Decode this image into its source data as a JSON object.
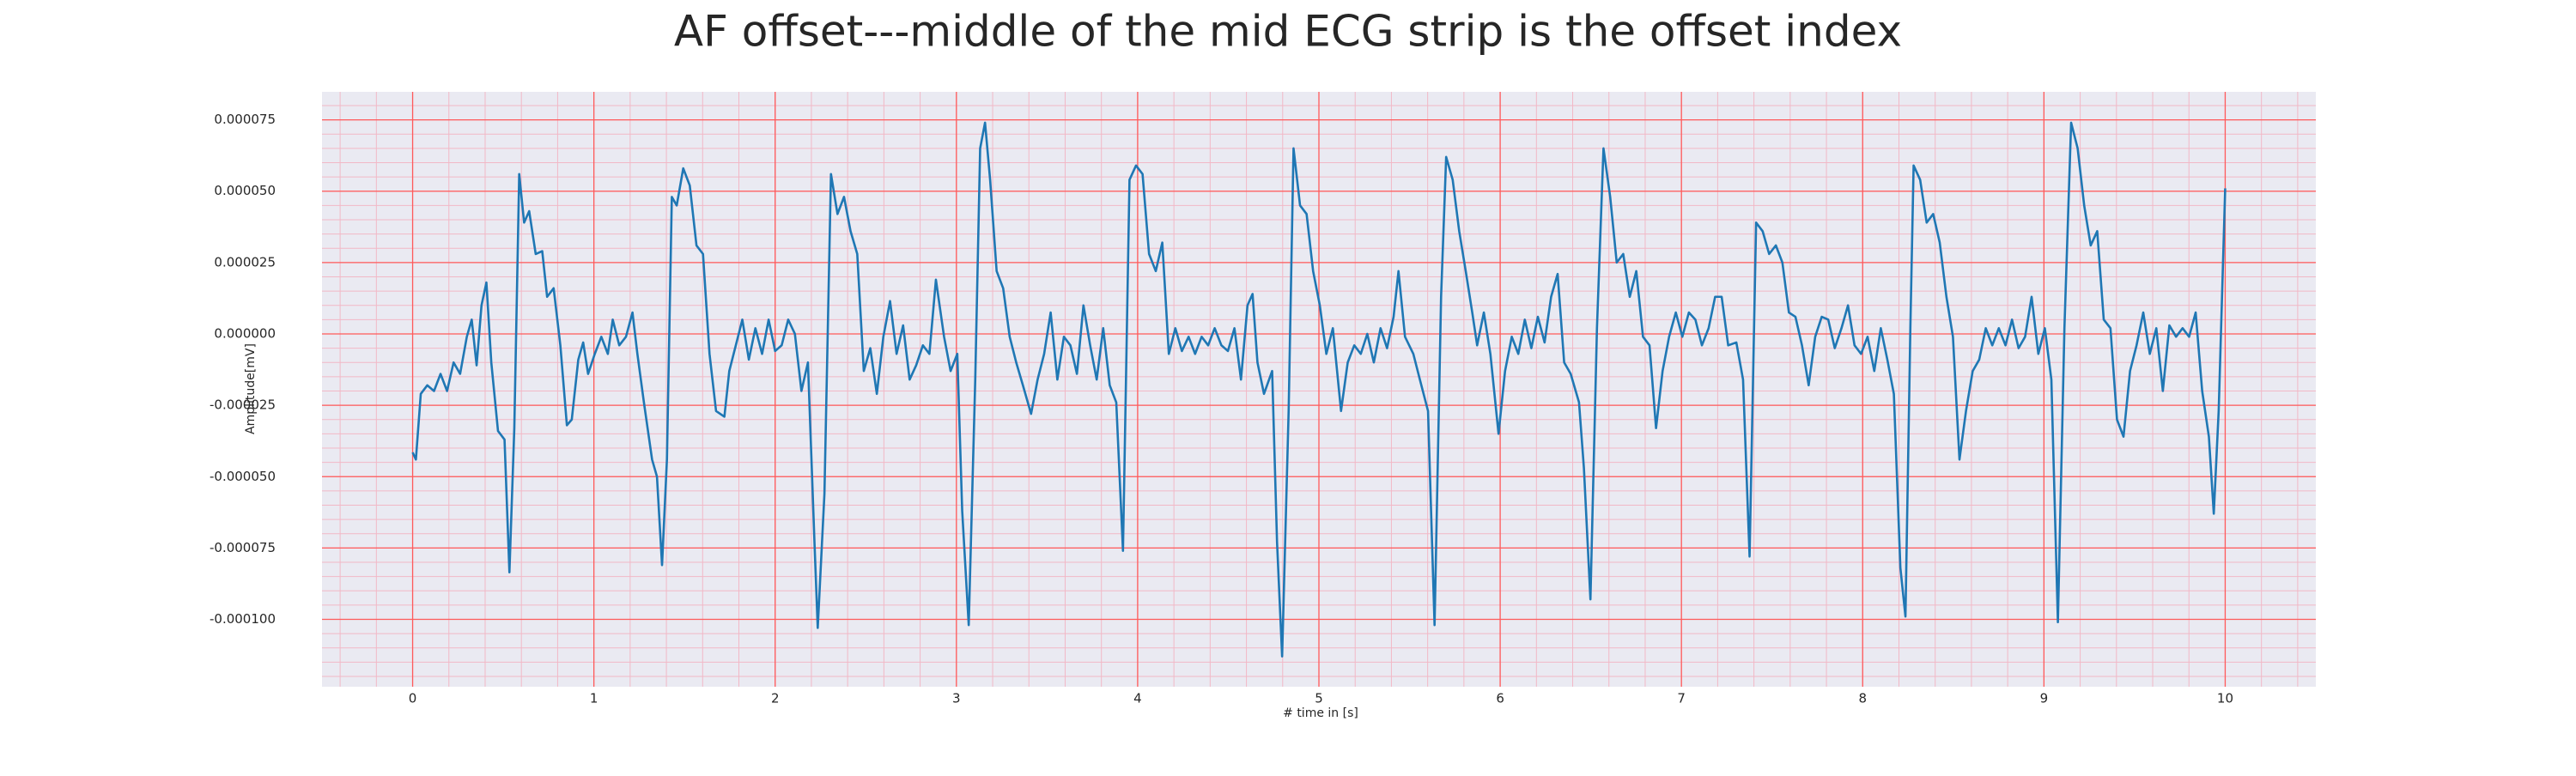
{
  "chart_data": {
    "type": "line",
    "title": "AF offset---middle of the mid ECG strip is the offset index",
    "xlabel": "# time in [s]",
    "ylabel": "Amplitude[mV]",
    "color": "#1f77b4",
    "grid": true,
    "minor_grid": true,
    "xlim": [
      -0.5,
      10.5
    ],
    "ylim": [
      -0.0001236,
      8.48e-05
    ],
    "xticks": [
      0,
      1,
      2,
      3,
      4,
      5,
      6,
      7,
      8,
      9,
      10
    ],
    "yticks": [
      {
        "value": -0.0001,
        "label": "-0.000100"
      },
      {
        "value": -7.5e-05,
        "label": "-0.000075"
      },
      {
        "value": -5e-05,
        "label": "-0.000050"
      },
      {
        "value": -2.5e-05,
        "label": "-0.000025"
      },
      {
        "value": 0,
        "label": "0.000000"
      },
      {
        "value": 2.5e-05,
        "label": "0.000025"
      },
      {
        "value": 5e-05,
        "label": "0.000050"
      },
      {
        "value": 7.5e-05,
        "label": "0.000075"
      }
    ],
    "x": [
      0,
      0.018,
      0.045,
      0.081,
      0.118,
      0.154,
      0.19,
      0.226,
      0.262,
      0.299,
      0.326,
      0.353,
      0.38,
      0.407,
      0.434,
      0.471,
      0.507,
      0.534,
      0.561,
      0.588,
      0.615,
      0.643,
      0.679,
      0.715,
      0.742,
      0.778,
      0.815,
      0.851,
      0.878,
      0.914,
      0.941,
      0.968,
      1.005,
      1.041,
      1.077,
      1.104,
      1.14,
      1.177,
      1.213,
      1.24,
      1.276,
      1.321,
      1.348,
      1.376,
      1.403,
      1.43,
      1.457,
      1.493,
      1.529,
      1.566,
      1.602,
      1.638,
      1.674,
      1.72,
      1.747,
      1.783,
      1.819,
      1.855,
      1.891,
      1.928,
      1.964,
      2.0,
      2.036,
      2.072,
      2.109,
      2.145,
      2.181,
      2.217,
      2.235,
      2.272,
      2.308,
      2.344,
      2.38,
      2.416,
      2.453,
      2.489,
      2.525,
      2.561,
      2.597,
      2.634,
      2.67,
      2.706,
      2.742,
      2.778,
      2.815,
      2.851,
      2.887,
      2.932,
      2.968,
      3.005,
      3.032,
      3.068,
      3.104,
      3.131,
      3.158,
      3.186,
      3.222,
      3.258,
      3.294,
      3.33,
      3.367,
      3.412,
      3.448,
      3.484,
      3.52,
      3.557,
      3.593,
      3.629,
      3.665,
      3.701,
      3.738,
      3.774,
      3.81,
      3.846,
      3.882,
      3.919,
      3.955,
      3.991,
      4.027,
      4.063,
      4.1,
      4.136,
      4.172,
      4.208,
      4.244,
      4.281,
      4.317,
      4.353,
      4.389,
      4.425,
      4.462,
      4.498,
      4.534,
      4.57,
      4.606,
      4.634,
      4.661,
      4.697,
      4.742,
      4.769,
      4.797,
      4.833,
      4.86,
      4.896,
      4.932,
      4.968,
      5.005,
      5.041,
      5.077,
      5.122,
      5.159,
      5.195,
      5.231,
      5.267,
      5.303,
      5.34,
      5.376,
      5.412,
      5.439,
      5.475,
      5.521,
      5.557,
      5.602,
      5.638,
      5.674,
      5.702,
      5.738,
      5.774,
      5.81,
      5.846,
      5.873,
      5.91,
      5.946,
      5.991,
      6.027,
      6.064,
      6.1,
      6.136,
      6.172,
      6.208,
      6.245,
      6.281,
      6.317,
      6.353,
      6.389,
      6.435,
      6.462,
      6.498,
      6.534,
      6.57,
      6.607,
      6.643,
      6.679,
      6.715,
      6.751,
      6.788,
      6.824,
      6.86,
      6.896,
      6.932,
      6.969,
      7.005,
      7.041,
      7.077,
      7.113,
      7.15,
      7.186,
      7.222,
      7.258,
      7.303,
      7.34,
      7.376,
      7.412,
      7.448,
      7.484,
      7.521,
      7.557,
      7.593,
      7.629,
      7.665,
      7.702,
      7.738,
      7.774,
      7.81,
      7.846,
      7.883,
      7.919,
      7.955,
      7.991,
      8.027,
      8.064,
      8.1,
      8.136,
      8.172,
      8.208,
      8.236,
      8.263,
      8.281,
      8.317,
      8.353,
      8.389,
      8.425,
      8.462,
      8.498,
      8.534,
      8.57,
      8.607,
      8.643,
      8.679,
      8.715,
      8.751,
      8.788,
      8.824,
      8.86,
      8.896,
      8.932,
      8.969,
      9.005,
      9.041,
      9.077,
      9.113,
      9.15,
      9.186,
      9.222,
      9.258,
      9.294,
      9.33,
      9.367,
      9.403,
      9.439,
      9.475,
      9.511,
      9.548,
      9.584,
      9.62,
      9.656,
      9.692,
      9.729,
      9.765,
      9.801,
      9.837,
      9.873,
      9.91,
      9.937,
      9.964,
      10.0
    ],
    "values": [
      -4.15e-05,
      -4.4e-05,
      -2.1e-05,
      -1.8e-05,
      -2e-05,
      -1.4e-05,
      -2e-05,
      -1e-05,
      -1.4e-05,
      -1e-06,
      5e-06,
      -1.1e-05,
      1e-05,
      1.8e-05,
      -1e-05,
      -3.4e-05,
      -3.7e-05,
      -8.35e-05,
      -3.3e-05,
      5.6e-05,
      3.9e-05,
      4.3e-05,
      2.8e-05,
      2.9e-05,
      1.3e-05,
      1.6e-05,
      -4e-06,
      -3.2e-05,
      -3e-05,
      -9e-06,
      -3e-06,
      -1.4e-05,
      -7e-06,
      -1e-06,
      -7e-06,
      5e-06,
      -4e-06,
      -1e-06,
      7.5e-06,
      -7e-06,
      -2.4e-05,
      -4.4e-05,
      -5e-05,
      -8.1e-05,
      -4.4e-05,
      4.8e-05,
      4.5e-05,
      5.8e-05,
      5.2e-05,
      3.1e-05,
      2.8e-05,
      -7e-06,
      -2.7e-05,
      -2.9e-05,
      -1.3e-05,
      -4e-06,
      5e-06,
      -9e-06,
      2e-06,
      -7e-06,
      5e-06,
      -6e-06,
      -4e-06,
      5e-06,
      0,
      -2e-05,
      -1e-05,
      -7.3e-05,
      -0.000103,
      -5.6e-05,
      5.6e-05,
      4.2e-05,
      4.8e-05,
      3.6e-05,
      2.8e-05,
      -1.3e-05,
      -5e-06,
      -2.1e-05,
      -1e-06,
      1.15e-05,
      -7e-06,
      3e-06,
      -1.6e-05,
      -1.1e-05,
      -4e-06,
      -7e-06,
      1.9e-05,
      -1e-06,
      -1.3e-05,
      -7e-06,
      -6.2e-05,
      -0.000102,
      -1.6e-05,
      6.5e-05,
      7.4e-05,
      5.4e-05,
      2.2e-05,
      1.6e-05,
      -1e-06,
      -1e-05,
      -1.8e-05,
      -2.8e-05,
      -1.6e-05,
      -7e-06,
      7.5e-06,
      -1.6e-05,
      -1e-06,
      -4e-06,
      -1.4e-05,
      1e-05,
      -4e-06,
      -1.6e-05,
      2e-06,
      -1.8e-05,
      -2.4e-05,
      -7.6e-05,
      5.4e-05,
      5.9e-05,
      5.6e-05,
      2.8e-05,
      2.2e-05,
      3.2e-05,
      -7e-06,
      2e-06,
      -6e-06,
      -1e-06,
      -7e-06,
      -1e-06,
      -4e-06,
      2e-06,
      -4e-06,
      -6e-06,
      2e-06,
      -1.6e-05,
      1e-05,
      1.4e-05,
      -1e-05,
      -2.1e-05,
      -1.3e-05,
      -7.3e-05,
      -0.000113,
      -2.7e-05,
      6.5e-05,
      4.5e-05,
      4.2e-05,
      2.2e-05,
      1e-05,
      -7e-06,
      2e-06,
      -2.7e-05,
      -1e-05,
      -4e-06,
      -7e-06,
      0,
      -1e-05,
      2e-06,
      -5e-06,
      6e-06,
      2.2e-05,
      -1e-06,
      -7e-06,
      -1.6e-05,
      -2.7e-05,
      -0.000102,
      1.3e-05,
      6.2e-05,
      5.4e-05,
      3.6e-05,
      2.2e-05,
      7.5e-06,
      -4e-06,
      7.5e-06,
      -7e-06,
      -3.5e-05,
      -1.3e-05,
      -1e-06,
      -7e-06,
      5e-06,
      -5e-06,
      6e-06,
      -3e-06,
      1.3e-05,
      2.1e-05,
      -1e-05,
      -1.4e-05,
      -2.4e-05,
      -4.7e-05,
      -9.3e-05,
      2e-06,
      6.5e-05,
      4.8e-05,
      2.5e-05,
      2.8e-05,
      1.3e-05,
      2.2e-05,
      -1e-06,
      -4e-06,
      -3.3e-05,
      -1.3e-05,
      -1e-06,
      7.5e-06,
      -1e-06,
      7.5e-06,
      5e-06,
      -4e-06,
      2e-06,
      1.3e-05,
      1.3e-05,
      -4e-06,
      -3e-06,
      -1.6e-05,
      -7.8e-05,
      3.9e-05,
      3.6e-05,
      2.8e-05,
      3.1e-05,
      2.5e-05,
      7.5e-06,
      6e-06,
      -4e-06,
      -1.8e-05,
      -1e-06,
      6e-06,
      5e-06,
      -5e-06,
      2e-06,
      1e-05,
      -4e-06,
      -7e-06,
      -1e-06,
      -1.3e-05,
      2e-06,
      -9e-06,
      -2.1e-05,
      -8.2e-05,
      -9.9e-05,
      2e-06,
      5.9e-05,
      5.4e-05,
      3.9e-05,
      4.2e-05,
      3.2e-05,
      1.3e-05,
      -1e-06,
      -4.4e-05,
      -2.7e-05,
      -1.3e-05,
      -9e-06,
      2e-06,
      -4e-06,
      2e-06,
      -4e-06,
      5e-06,
      -5e-06,
      -1e-06,
      1.3e-05,
      -7e-06,
      2e-06,
      -1.6e-05,
      -0.000101,
      2e-06,
      7.4e-05,
      6.5e-05,
      4.5e-05,
      3.1e-05,
      3.6e-05,
      5e-06,
      2e-06,
      -3e-05,
      -3.6e-05,
      -1.3e-05,
      -4e-06,
      7.5e-06,
      -7e-06,
      2e-06,
      -2e-05,
      3e-06,
      -1e-06,
      2e-06,
      -1e-06,
      7.5e-06,
      -2e-05,
      -3.6e-05,
      -6.3e-05,
      -2.7e-05,
      5.1e-05
    ]
  }
}
